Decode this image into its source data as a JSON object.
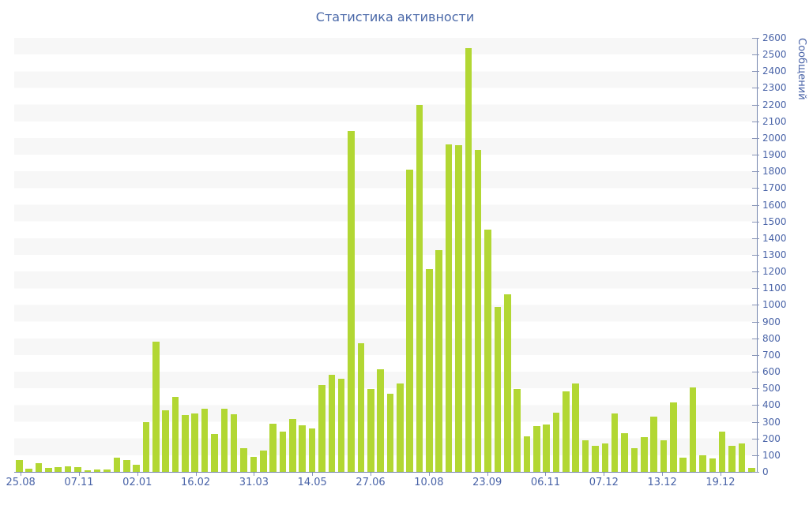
{
  "chart_data": {
    "type": "bar",
    "title": "Статистика активности",
    "xlabel": "",
    "ylabel": "Сообщений",
    "ylim": [
      0,
      2600
    ],
    "ytick_step": 100,
    "grid": "horizontal alternating stripes every 100 units",
    "legend": "none",
    "bar_color": "#b2d733",
    "values": [
      70,
      20,
      50,
      25,
      30,
      35,
      30,
      10,
      15,
      12,
      85,
      72,
      42,
      300,
      780,
      370,
      450,
      340,
      350,
      380,
      225,
      380,
      345,
      140,
      90,
      130,
      290,
      240,
      315,
      280,
      260,
      520,
      580,
      560,
      2040,
      770,
      495,
      615,
      470,
      530,
      1810,
      2200,
      1215,
      1330,
      1960,
      1955,
      2540,
      1930,
      1450,
      990,
      1065,
      495,
      215,
      275,
      285,
      355,
      480,
      530,
      190,
      155,
      170,
      350,
      230,
      140,
      210,
      330,
      190,
      415,
      85,
      505,
      100,
      80,
      240,
      155,
      170,
      25
    ],
    "x_tick_labels": [
      "25.08",
      "07.11",
      "02.01",
      "16.02",
      "31.03",
      "14.05",
      "27.06",
      "10.08",
      "23.09",
      "06.11",
      "07.12",
      "13.12",
      "19.12"
    ],
    "x_tick_bar_indices": [
      0,
      6,
      12,
      18,
      24,
      30,
      36,
      42,
      48,
      54,
      60,
      66,
      72
    ]
  },
  "colors": {
    "title_text": "#4a68a8",
    "axis_label_text": "#4a64a8",
    "axis_line": "#7384ad",
    "stripe": "#f7f7f7",
    "bar": "#b2d733"
  }
}
